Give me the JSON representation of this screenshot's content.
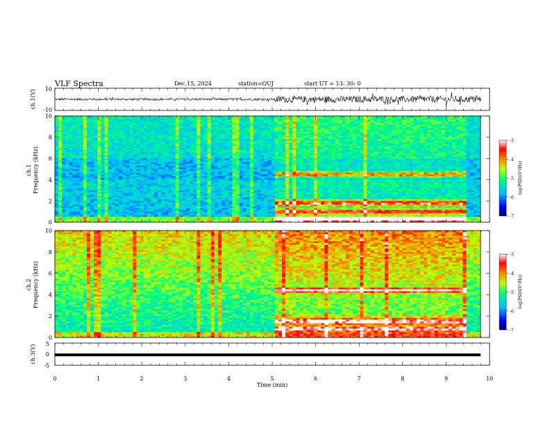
{
  "header": {
    "title": "VLF Spectra",
    "date": "Dec.15, 2024",
    "station": "station=OUJ",
    "start_ut": "start  UT =   13: 30: 0"
  },
  "chart_data": [
    {
      "type": "line",
      "ylabel": "ch.1(V)",
      "ylim": [
        -10,
        10
      ],
      "yticks": [
        "10",
        "-10"
      ],
      "description_values": {
        "baseline": 0,
        "quiet_amplitude": 1,
        "active_amplitude": 3,
        "active_start_min": 5.05
      }
    },
    {
      "type": "heatmap",
      "ylabel": "ch.1\nFrequency (kHz)",
      "ylim": [
        0,
        10
      ],
      "yticks": [
        "0",
        "2",
        "4",
        "6",
        "8",
        "10"
      ],
      "colorbar": {
        "label": "log(PSD)(V²/Hz)",
        "range": [
          -7,
          -3
        ],
        "ticks": [
          "-3",
          "-4",
          "-5",
          "-6",
          "-7"
        ]
      },
      "event_start_min": 5.05,
      "event_end_min": 9.45,
      "bands_khz": [
        4.5,
        1.8,
        1.0,
        0.3
      ]
    },
    {
      "type": "heatmap",
      "ylabel": "ch.2\nFrequency (kHz)",
      "ylim": [
        0,
        10
      ],
      "yticks": [
        "0",
        "2",
        "4",
        "6",
        "8",
        "10"
      ],
      "colorbar": {
        "label": "log(PSD)(V²/Hz)",
        "range": [
          -7,
          -3
        ],
        "ticks": [
          "-3",
          "-4",
          "-5",
          "-6",
          "-7"
        ]
      },
      "event_start_min": 5.05,
      "event_end_min": 9.45,
      "bands_khz": [
        4.4,
        1.5,
        0.8
      ]
    },
    {
      "type": "line",
      "ylabel": "ch.3(V)",
      "ylim": [
        -5,
        5
      ],
      "yticks": [
        "5",
        "0",
        "-5"
      ],
      "values": {
        "constant": 0
      }
    }
  ],
  "xaxis": {
    "label": "Time  (min)",
    "range": [
      0,
      10
    ],
    "ticks": [
      "0",
      "1",
      "2",
      "3",
      "4",
      "5",
      "6",
      "7",
      "8",
      "9",
      "10"
    ]
  }
}
